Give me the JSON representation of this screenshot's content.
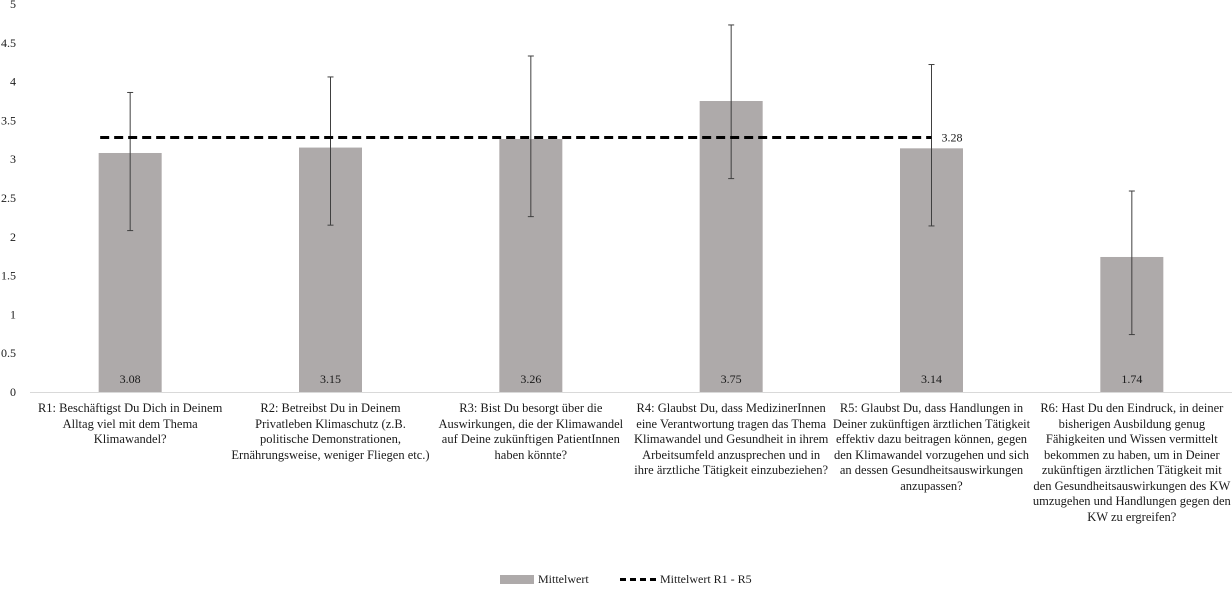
{
  "chart_data": {
    "type": "bar",
    "categories": [
      "R1: Beschäftigst Du Dich in Deinem Alltag viel mit dem Thema Klimawandel?",
      "R2: Betreibst Du in Deinem Privatleben Klimaschutz (z.B. politische Demonstrationen, Ernährungsweise, weniger Fliegen etc.)",
      "R3: Bist Du besorgt über die Auswirkungen, die der Klimawandel auf Deine zukünftigen PatientInnen haben könnte?",
      "R4: Glaubst Du, dass MedizinerInnen eine Verantwortung tragen das Thema Klimawandel und Gesundheit in ihrem Arbeitsumfeld anzusprechen und in ihre ärztliche Tätigkeit einzubeziehen?",
      "R5: Glaubst Du, dass Handlungen in Deiner zukünftigen ärztlichen Tätigkeit effektiv dazu beitragen können, gegen den Klimawandel vorzugehen und sich an dessen Gesundheitsauswirkungen anzupassen?",
      "R6: Hast Du den Eindruck, in deiner bisherigen Ausbildung genug Fähigkeiten und Wissen vermittelt bekommen zu haben, um in Deiner zukünftigen ärztlichen Tätigkeit mit den Gesundheitsauswirkungen des KW umzugehen und Handlungen gegen den KW zu ergreifen?"
    ],
    "series": [
      {
        "name": "Mittelwert",
        "values": [
          3.08,
          3.15,
          3.26,
          3.75,
          3.14,
          1.74
        ],
        "labels": [
          "3.08",
          "3.15",
          "3.26",
          "3.75",
          "3.14",
          "1.74"
        ],
        "error_low": [
          2.08,
          2.15,
          2.26,
          2.75,
          2.14,
          0.74
        ],
        "error_high": [
          3.86,
          4.06,
          4.33,
          4.73,
          4.22,
          2.59
        ],
        "color": "#aeaaaa"
      },
      {
        "name": "Mittelwert R1 - R5",
        "value": 3.28,
        "label": "3.28",
        "from_category": 0,
        "to_category": 4,
        "color": "#000000",
        "style": "dashed"
      }
    ],
    "ylim": [
      0,
      5
    ],
    "yticks": [
      "0",
      "0.5",
      "1",
      "1.5",
      "2",
      "2.5",
      "3",
      "3.5",
      "4",
      "4.5",
      "5"
    ],
    "ytick_values": [
      0,
      0.5,
      1,
      1.5,
      2,
      2.5,
      3,
      3.5,
      4,
      4.5,
      5
    ],
    "grid": false,
    "legend_position": "bottom",
    "title": "",
    "xlabel": "",
    "ylabel": ""
  }
}
